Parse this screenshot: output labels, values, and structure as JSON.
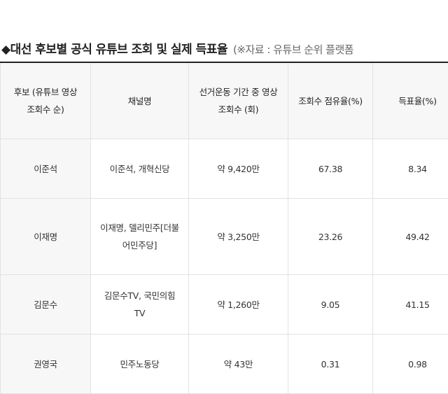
{
  "title": {
    "main": "◆대선 후보별 공식 유튜브 조회 및 실제 득표율",
    "source": "(※자료 : 유튜브 순위 플랫폼"
  },
  "table": {
    "headers": [
      "후보 (유튜브 영상 조회수 순)",
      "채널명",
      "선거운동 기간 중 영상 조회수 (회)",
      "조회수 점유율(%)",
      "득표율(%)"
    ],
    "rows": [
      [
        "이준석",
        "이준석, 개혁신당",
        "약 9,420만",
        "67.38",
        "8.34"
      ],
      [
        "이재명",
        "이재명, 델리민주[더불어민주당]",
        "약 3,250만",
        "23.26",
        "49.42"
      ],
      [
        "김문수",
        "김문수TV, 국민의힘TV",
        "약 1,260만",
        "9.05",
        "41.15"
      ],
      [
        "권영국",
        "민주노동당",
        "약 43만",
        "0.31",
        "0.98"
      ]
    ]
  }
}
